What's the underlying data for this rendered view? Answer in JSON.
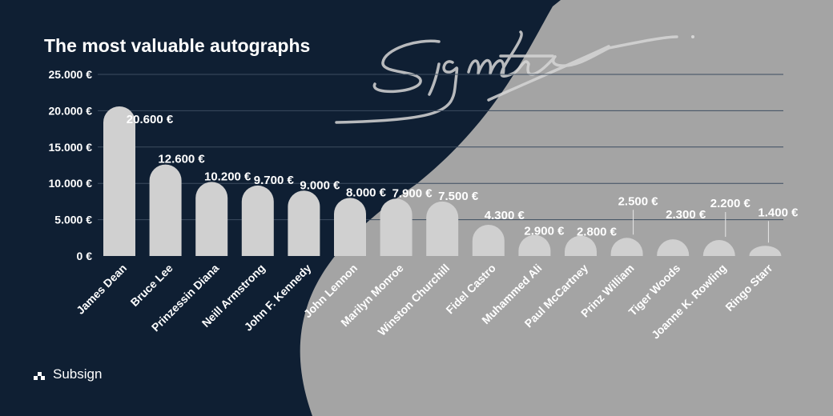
{
  "title": "The most valuable autographs",
  "brand": {
    "name": "Subsign",
    "logo_icon": "subsign-logo-icon"
  },
  "watermark": {
    "text": "Signature",
    "style": "handwritten"
  },
  "colors": {
    "background_left": "#0f1f33",
    "background_right": "#a4a4a4",
    "bar": "#d0d0d0",
    "gridline": "#3d4d60",
    "text": "#ffffff"
  },
  "chart_data": {
    "type": "bar",
    "title": "The most valuable autographs",
    "xlabel": "",
    "ylabel": "",
    "ylim": [
      0,
      25000
    ],
    "yticks": [
      0,
      5000,
      10000,
      15000,
      20000,
      25000
    ],
    "ytick_labels": [
      "0 €",
      "5.000 €",
      "10.000 €",
      "15.000 €",
      "20.000 €",
      "25.000 €"
    ],
    "grid": true,
    "legend": "none",
    "categories": [
      "James Dean",
      "Bruce Lee",
      "Prinzessin Diana",
      "Neill Armstrong",
      "John F. Kennedy",
      "John Lennon",
      "Marilyn Monroe",
      "Winston Churchill",
      "Fidel Castro",
      "Muhammed Ali",
      "Paul McCartney",
      "Prinz William",
      "Tiger Woods",
      "Joanne K. Rowling",
      "Ringo Starr"
    ],
    "values": [
      20600,
      12600,
      10200,
      9700,
      9000,
      8000,
      7900,
      7500,
      4300,
      2900,
      2800,
      2500,
      2300,
      2200,
      1400
    ],
    "data_labels": [
      "20.600 €",
      "12.600 €",
      "10.200 €",
      "9.700 €",
      "9.000 €",
      "8.000 €",
      "7.900 €",
      "7.500 €",
      "4.300 €",
      "2.900 €",
      "2.800 €",
      "2.500 €",
      "2.300 €",
      "2.200 €",
      "1.400 €"
    ]
  }
}
